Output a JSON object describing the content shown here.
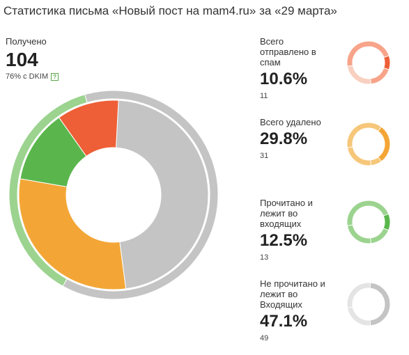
{
  "title": "Статистика письма «Новый пост на mam4.ru» за «29 марта»",
  "received": {
    "label": "Получено",
    "count": "104",
    "dkim": "76% с DKIM",
    "help_icon": "?"
  },
  "colors": {
    "spam": "#ee5f37",
    "spam_light": "#f7a48a",
    "spam_track": "#f8cfc0",
    "deleted": "#f3a636",
    "deleted_light": "#f6c77a",
    "read": "#5ab64c",
    "read_light": "#9bd38f",
    "unread": "#c4c4c4",
    "unread_light": "#e4e4e4"
  },
  "chart_data": [
    {
      "type": "pie",
      "variant": "donut",
      "total": 104,
      "slices": [
        {
          "key": "unread",
          "value": 47.1
        },
        {
          "key": "deleted",
          "value": 29.8
        },
        {
          "key": "read",
          "value": 12.5
        },
        {
          "key": "spam",
          "value": 10.6
        }
      ],
      "outer_ring": [
        {
          "key": "unread",
          "value": 50
        },
        {
          "key": "read_light",
          "value": 30
        }
      ]
    }
  ],
  "stats": [
    {
      "id": "spam",
      "label_lines": [
        "Всего",
        "отправлено в",
        "спам"
      ],
      "percent": "10.6%",
      "count": "11",
      "mini": {
        "inner": 10.6,
        "outer": 76
      }
    },
    {
      "id": "deleted",
      "label_lines": [
        "Всего удалено"
      ],
      "percent": "29.8%",
      "count": "31",
      "mini": {
        "inner": 29.8,
        "outer": 76
      }
    },
    {
      "id": "read",
      "label_lines": [
        "Прочитано и",
        "лежит во",
        "входящих"
      ],
      "percent": "12.5%",
      "count": "13",
      "mini": {
        "inner": 12.5,
        "outer": 76
      }
    },
    {
      "id": "unread",
      "label_lines": [
        "Не прочитано и",
        "лежит во",
        "Входящих"
      ],
      "percent": "47.1%",
      "count": "49",
      "mini": {
        "inner": 47.1,
        "outer": 76
      }
    }
  ]
}
